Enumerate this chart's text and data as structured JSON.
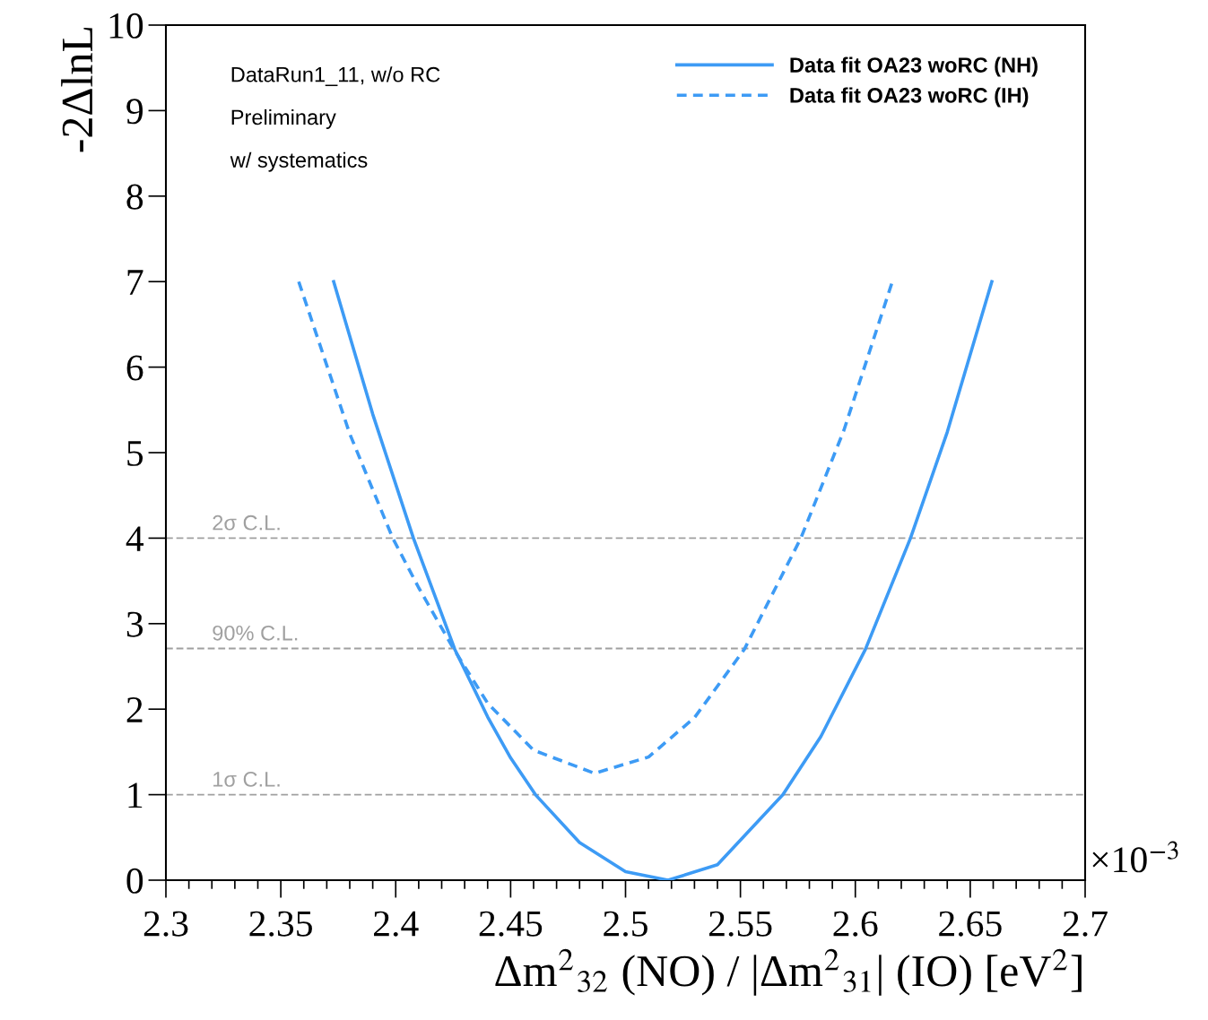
{
  "chart_data": {
    "type": "line",
    "xlabel": "Δm$^{2}$$_{32}$ (NO) / |Δm$^{2}$$_{31}$| (IO) [eV$^{2}$]",
    "ylabel": "-2ΔlnL",
    "xlim": [
      2.3,
      2.7
    ],
    "xticks": [
      2.3,
      2.35,
      2.4,
      2.45,
      2.5,
      2.55,
      2.6,
      2.65,
      2.7
    ],
    "ylim": [
      0,
      10
    ],
    "yticks": [
      0,
      1,
      2,
      3,
      4,
      5,
      6,
      7,
      8,
      9,
      10
    ],
    "grid": false,
    "legend": "top right",
    "series": [
      {
        "name": "Data fit OA23 woRC (NH)",
        "color": "#3d9bf5",
        "line_style": "solid",
        "x": [
          2.373,
          2.39,
          2.4077,
          2.4257,
          2.44,
          2.45,
          2.4608,
          2.48,
          2.5,
          2.5185,
          2.54,
          2.5685,
          2.585,
          2.6044,
          2.624,
          2.64,
          2.6594
        ],
        "values": [
          7,
          5.45,
          4,
          2.7,
          1.91,
          1.43,
          1,
          0.44,
          0.1,
          0,
          0.18,
          1,
          1.68,
          2.7,
          4,
          5.24,
          7
        ]
      },
      {
        "name": "Data fit OA23 woRC (IH)",
        "color": "#3d9bf5",
        "line_style": "dashed",
        "x": [
          2.3578,
          2.38,
          2.3987,
          2.41,
          2.4253,
          2.44,
          2.46,
          2.4865,
          2.51,
          2.53,
          2.5517,
          2.5763,
          2.595,
          2.6161
        ],
        "values": [
          7,
          5.22,
          4,
          3.42,
          2.7,
          2.07,
          1.52,
          1.25,
          1.44,
          1.9,
          2.7,
          4,
          5.26,
          7
        ]
      }
    ],
    "ref_lines": [
      {
        "axis": "y",
        "value": 4,
        "label": "2σ C.L.",
        "color": "#a0a0a0",
        "line_style": "dashed"
      },
      {
        "axis": "y",
        "value": 2.71,
        "label": "90% C.L.",
        "color": "#a0a0a0",
        "line_style": "dashed"
      },
      {
        "axis": "y",
        "value": 1,
        "label": "1σ C.L.",
        "color": "#a0a0a0",
        "line_style": "dashed"
      }
    ],
    "annotations": [
      "DataRun1_11, w/o RC",
      "Preliminary",
      "w/ systematics",
      "×10$^{−3}$"
    ]
  }
}
